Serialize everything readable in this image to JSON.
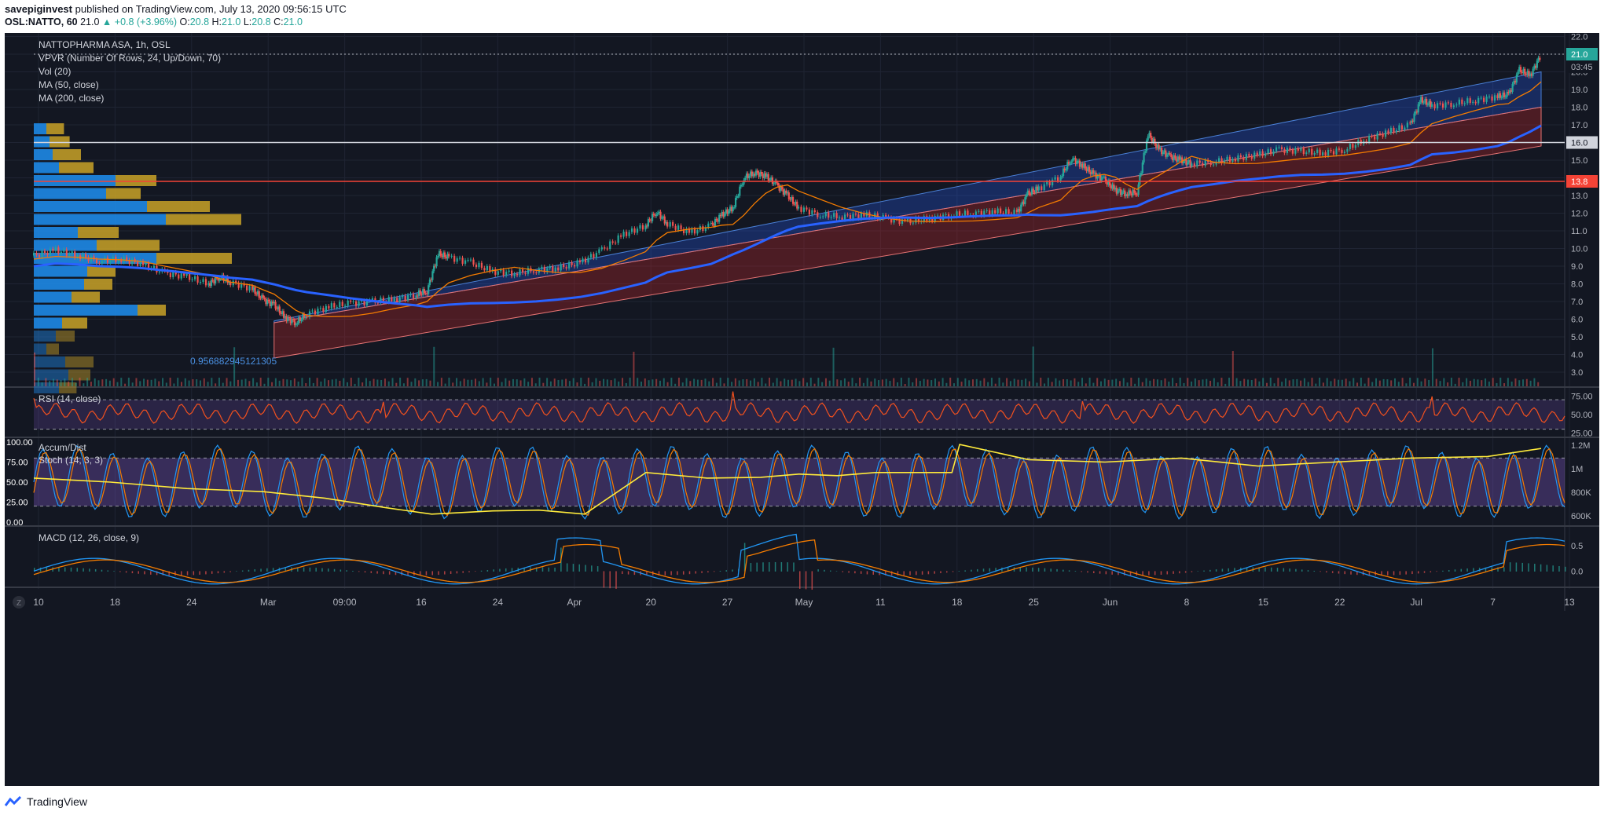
{
  "header": {
    "author": "savepiginvest",
    "published_text": "published on TradingView.com, July 13, 2020 09:56:15 UTC",
    "symbol": "OSL:NATTO, 60",
    "last": "21.0",
    "change": "+0.8 (+3.96%)",
    "open_label": "O:",
    "open": "20.8",
    "high_label": "H:",
    "high": "21.0",
    "low_label": "L:",
    "low": "20.8",
    "close_label": "C:",
    "close": "21.0"
  },
  "legend": {
    "title": "NATTOPHARMA ASA, 1h, OSL",
    "vpvr": "VPVR (Number Of Rows, 24, Up/Down, 70)",
    "vol": "Vol (20)",
    "ma50": "MA (50, close)",
    "ma200": "MA (200, close)",
    "fib_value": "0.956882945121305",
    "rsi": "RSI (14, close)",
    "accum": "Accum/Dist",
    "stoch": "Stoch (14, 3, 3)",
    "macd": "MACD (12, 26, close, 9)"
  },
  "footer": {
    "brand": "TradingView",
    "tz_button": "Z"
  },
  "colors": {
    "bg": "#131722",
    "grid": "#1f2433",
    "up": "#26a69a",
    "down": "#ef5350",
    "channel_upper": "#2962ff",
    "channel_lower": "#c62828",
    "ma50": "#f57c00",
    "ma200": "#2962ff",
    "rsi": "#f4511e",
    "stoch_k": "#2196f3",
    "stoch_d": "#f57c00",
    "accum": "#ffeb3b",
    "osc_band": "#7e57c2",
    "hline_red": "#f44336",
    "hline_white": "#d1d4dc"
  },
  "chart_data": [
    {
      "type": "candlestick",
      "name": "NATTOPHARMA ASA, 1h, OSL",
      "x_ticks": [
        "10",
        "18",
        "24",
        "Mar",
        "09:00",
        "16",
        "24",
        "Apr",
        "20",
        "27",
        "May",
        "11",
        "18",
        "25",
        "Jun",
        "8",
        "15",
        "22",
        "Jul",
        "7",
        "13"
      ],
      "y_ticks": [
        3.0,
        4.0,
        5.0,
        6.0,
        7.0,
        8.0,
        9.0,
        10.0,
        11.0,
        12.0,
        13.0,
        14.0,
        15.0,
        16.0,
        17.0,
        18.0,
        19.0,
        20.0,
        21.0,
        22.0
      ],
      "ylim": [
        2.2,
        22.2
      ],
      "price_labels": [
        {
          "value": "21.0",
          "kind": "last"
        },
        {
          "value": "03:45",
          "kind": "countdown"
        },
        {
          "value": "16.0",
          "kind": "hline"
        },
        {
          "value": "13.8",
          "kind": "hline"
        }
      ],
      "horizontal_lines": [
        16.0,
        13.8
      ],
      "close_path": [
        [
          0.0,
          9.6
        ],
        [
          0.02,
          9.9
        ],
        [
          0.04,
          9.6
        ],
        [
          0.06,
          9.3
        ],
        [
          0.08,
          9.4
        ],
        [
          0.1,
          9.1
        ],
        [
          0.12,
          8.6
        ],
        [
          0.14,
          8.4
        ],
        [
          0.16,
          8.0
        ],
        [
          0.17,
          8.4
        ],
        [
          0.18,
          8.1
        ],
        [
          0.2,
          7.7
        ],
        [
          0.21,
          7.1
        ],
        [
          0.22,
          6.8
        ],
        [
          0.23,
          6.1
        ],
        [
          0.24,
          5.8
        ],
        [
          0.25,
          6.3
        ],
        [
          0.27,
          6.7
        ],
        [
          0.29,
          6.9
        ],
        [
          0.31,
          7.0
        ],
        [
          0.33,
          7.1
        ],
        [
          0.35,
          7.4
        ],
        [
          0.36,
          7.6
        ],
        [
          0.37,
          9.7
        ],
        [
          0.38,
          9.5
        ],
        [
          0.4,
          9.2
        ],
        [
          0.42,
          8.7
        ],
        [
          0.44,
          8.6
        ],
        [
          0.46,
          8.8
        ],
        [
          0.48,
          8.9
        ],
        [
          0.5,
          9.2
        ],
        [
          0.52,
          9.9
        ],
        [
          0.54,
          10.8
        ],
        [
          0.56,
          11.3
        ],
        [
          0.57,
          12.1
        ],
        [
          0.58,
          11.4
        ],
        [
          0.6,
          10.9
        ],
        [
          0.62,
          11.3
        ],
        [
          0.63,
          11.9
        ],
        [
          0.64,
          12.3
        ],
        [
          0.65,
          14.0
        ],
        [
          0.66,
          14.3
        ],
        [
          0.67,
          14.1
        ],
        [
          0.68,
          13.6
        ],
        [
          0.69,
          13.0
        ],
        [
          0.7,
          12.3
        ],
        [
          0.72,
          11.9
        ],
        [
          0.74,
          11.8
        ],
        [
          0.76,
          11.9
        ],
        [
          0.78,
          11.7
        ],
        [
          0.8,
          11.5
        ],
        [
          0.82,
          11.7
        ],
        [
          0.84,
          11.9
        ],
        [
          0.86,
          12.0
        ],
        [
          0.88,
          12.1
        ],
        [
          0.9,
          12.0
        ],
        [
          0.91,
          13.1
        ],
        [
          0.92,
          13.4
        ],
        [
          0.94,
          14.1
        ],
        [
          0.95,
          15.1
        ],
        [
          0.96,
          14.7
        ],
        [
          0.97,
          14.2
        ],
        [
          0.98,
          13.9
        ],
        [
          0.99,
          13.3
        ],
        [
          1.0,
          13.1
        ],
        [
          1.01,
          13.2
        ],
        [
          1.02,
          16.5
        ],
        [
          1.03,
          15.6
        ],
        [
          1.04,
          15.2
        ],
        [
          1.05,
          15.0
        ],
        [
          1.06,
          14.8
        ],
        [
          1.08,
          14.9
        ],
        [
          1.1,
          15.1
        ],
        [
          1.12,
          15.3
        ],
        [
          1.14,
          15.6
        ],
        [
          1.16,
          15.5
        ],
        [
          1.18,
          15.4
        ],
        [
          1.2,
          15.6
        ],
        [
          1.22,
          16.2
        ],
        [
          1.24,
          16.6
        ],
        [
          1.26,
          17.0
        ],
        [
          1.27,
          18.4
        ],
        [
          1.28,
          18.1
        ],
        [
          1.3,
          18.2
        ],
        [
          1.32,
          18.4
        ],
        [
          1.34,
          18.6
        ],
        [
          1.35,
          18.7
        ],
        [
          1.36,
          20.1
        ],
        [
          1.37,
          19.8
        ],
        [
          1.38,
          21.0
        ]
      ],
      "channel": {
        "upper_start": 5.9,
        "upper_end": 20.0,
        "mid_start": 3.8,
        "mid_end": 18.0,
        "lower_start": 3.8,
        "lower_end": 15.8
      }
    },
    {
      "type": "line",
      "name": "RSI (14, close)",
      "y_ticks": [
        25.0,
        50.0,
        75.0
      ],
      "ylim": [
        20,
        85
      ],
      "bands": [
        30,
        70
      ]
    },
    {
      "type": "line",
      "name": "Stoch (14, 3, 3)",
      "y_ticks": [
        0.0,
        25.0,
        50.0,
        75.0,
        100.0
      ],
      "ylim": [
        0,
        100
      ],
      "bands": [
        20,
        80
      ],
      "right_ticks": [
        "1.2M",
        "1M",
        "800K",
        "600K"
      ]
    },
    {
      "type": "line",
      "name": "MACD (12, 26, close, 9)",
      "y_ticks": [
        0.0,
        0.5
      ],
      "ylim": [
        -0.3,
        0.85
      ]
    }
  ]
}
